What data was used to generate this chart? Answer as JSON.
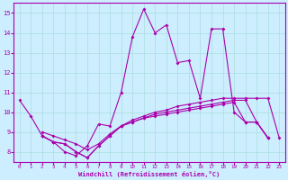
{
  "xlabel": "Windchill (Refroidissement éolien,°C)",
  "xlim": [
    -0.5,
    23.5
  ],
  "ylim": [
    7.5,
    15.5
  ],
  "yticks": [
    8,
    9,
    10,
    11,
    12,
    13,
    14,
    15
  ],
  "xticks": [
    0,
    1,
    2,
    3,
    4,
    5,
    6,
    7,
    8,
    9,
    10,
    11,
    12,
    13,
    14,
    15,
    16,
    17,
    18,
    19,
    20,
    21,
    22,
    23
  ],
  "bg_color": "#cceeff",
  "grid_color": "#aadddd",
  "line_color": "#aa00aa",
  "line1_y": [
    10.6,
    9.8,
    8.8,
    8.5,
    8.0,
    7.8,
    8.3,
    9.4,
    9.3,
    11.0,
    13.8,
    15.2,
    14.0,
    14.4,
    12.5,
    12.6,
    10.7,
    14.2,
    14.2,
    10.0,
    9.5,
    9.5,
    8.7,
    null
  ],
  "line2_y": [
    null,
    null,
    8.8,
    8.5,
    8.4,
    8.0,
    7.7,
    8.3,
    8.8,
    9.3,
    9.6,
    9.8,
    10.0,
    10.1,
    10.3,
    10.4,
    10.5,
    10.6,
    10.7,
    10.7,
    10.7,
    10.7,
    10.7,
    8.7
  ],
  "line3_y": [
    null,
    null,
    8.8,
    8.5,
    8.4,
    8.0,
    7.7,
    8.3,
    8.8,
    9.3,
    9.5,
    9.7,
    9.8,
    9.9,
    10.0,
    10.1,
    10.2,
    10.3,
    10.4,
    10.5,
    9.5,
    9.5,
    8.7,
    null
  ],
  "line4_y": [
    null,
    null,
    9.0,
    8.8,
    8.6,
    8.4,
    8.1,
    8.4,
    8.9,
    9.3,
    9.5,
    9.7,
    9.9,
    10.0,
    10.1,
    10.2,
    10.3,
    10.4,
    10.5,
    10.6,
    10.6,
    9.5,
    8.7,
    null
  ]
}
